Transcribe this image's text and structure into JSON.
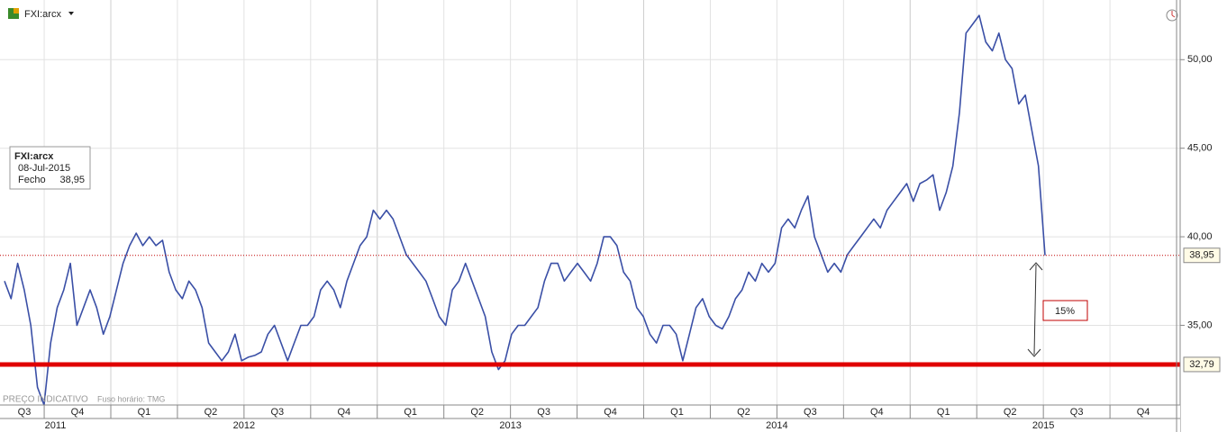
{
  "header": {
    "symbol": "FXI:arcx"
  },
  "chart_data": {
    "type": "line",
    "series": [
      {
        "name": "FXI:arcx",
        "color": "#3a4fa6",
        "values": [
          37.5,
          36.5,
          38.5,
          37,
          35,
          31.5,
          30.5,
          34,
          36,
          37,
          38.5,
          35,
          36,
          37,
          36,
          34.5,
          35.5,
          37,
          38.5,
          39.5,
          40.2,
          39.5,
          40,
          39.5,
          39.8,
          38,
          37,
          36.5,
          37.5,
          37,
          36,
          34,
          33.5,
          33,
          33.5,
          34.5,
          33,
          33.2,
          33.3,
          33.5,
          34.5,
          35,
          34,
          33,
          34,
          35,
          35,
          35.5,
          37,
          37.5,
          37,
          36,
          37.5,
          38.5,
          39.5,
          40,
          41.5,
          41,
          41.5,
          41,
          40,
          39,
          38.5,
          38,
          37.5,
          36.5,
          35.5,
          35,
          37,
          37.5,
          38.5,
          37.5,
          36.5,
          35.5,
          33.5,
          32.5,
          33,
          34.5,
          35,
          35,
          35.5,
          36,
          37.5,
          38.5,
          38.5,
          37.5,
          38,
          38.5,
          38,
          37.5,
          38.5,
          40,
          40,
          39.5,
          38,
          37.5,
          36,
          35.5,
          34.5,
          34,
          35,
          35,
          34.5,
          33,
          34.5,
          36,
          36.5,
          35.5,
          35,
          34.8,
          35.5,
          36.5,
          37,
          38,
          37.5,
          38.5,
          38,
          38.5,
          40.5,
          41,
          40.5,
          41.5,
          42.3,
          40,
          39,
          38,
          38.5,
          38,
          39,
          39.5,
          40,
          40.5,
          41,
          40.5,
          41.5,
          42,
          42.5,
          43,
          42,
          43,
          43.2,
          43.5,
          41.5,
          42.5,
          44,
          47,
          51.5,
          52,
          52.5,
          51,
          50.5,
          51.5,
          50,
          49.5,
          47.5,
          48,
          46,
          44,
          38.95
        ]
      }
    ],
    "ylim": [
      30.5,
      53.37
    ],
    "yticks": [
      {
        "value": 35,
        "label": "35,00"
      },
      {
        "value": 40,
        "label": "40,00"
      },
      {
        "value": 45,
        "label": "45,00"
      },
      {
        "value": 50,
        "label": "50,00"
      }
    ],
    "grid": true,
    "levels": [
      {
        "value": 38.95,
        "label": "38,95",
        "color": "#c00000",
        "style": "dotted"
      },
      {
        "value": 32.79,
        "label": "32,79",
        "color": "#e00000",
        "style": "thick"
      }
    ],
    "quarters": [
      "Q3",
      "Q4",
      "Q1",
      "Q2",
      "Q3",
      "Q4",
      "Q1",
      "Q2",
      "Q3",
      "Q4",
      "Q1",
      "Q2",
      "Q3",
      "Q4",
      "Q1",
      "Q2",
      "Q3",
      "Q4"
    ],
    "years": [
      "2011",
      "2012",
      "2013",
      "2014",
      "2015"
    ],
    "tooltip": {
      "title": "FXI:arcx",
      "date": "08-Jul-2015",
      "field": "Fecho",
      "value_label": "38,95"
    },
    "annotation": "15%",
    "footer": {
      "price": "PREÇO INDICATIVO",
      "timezone": "Fuso horário: TMG"
    }
  }
}
